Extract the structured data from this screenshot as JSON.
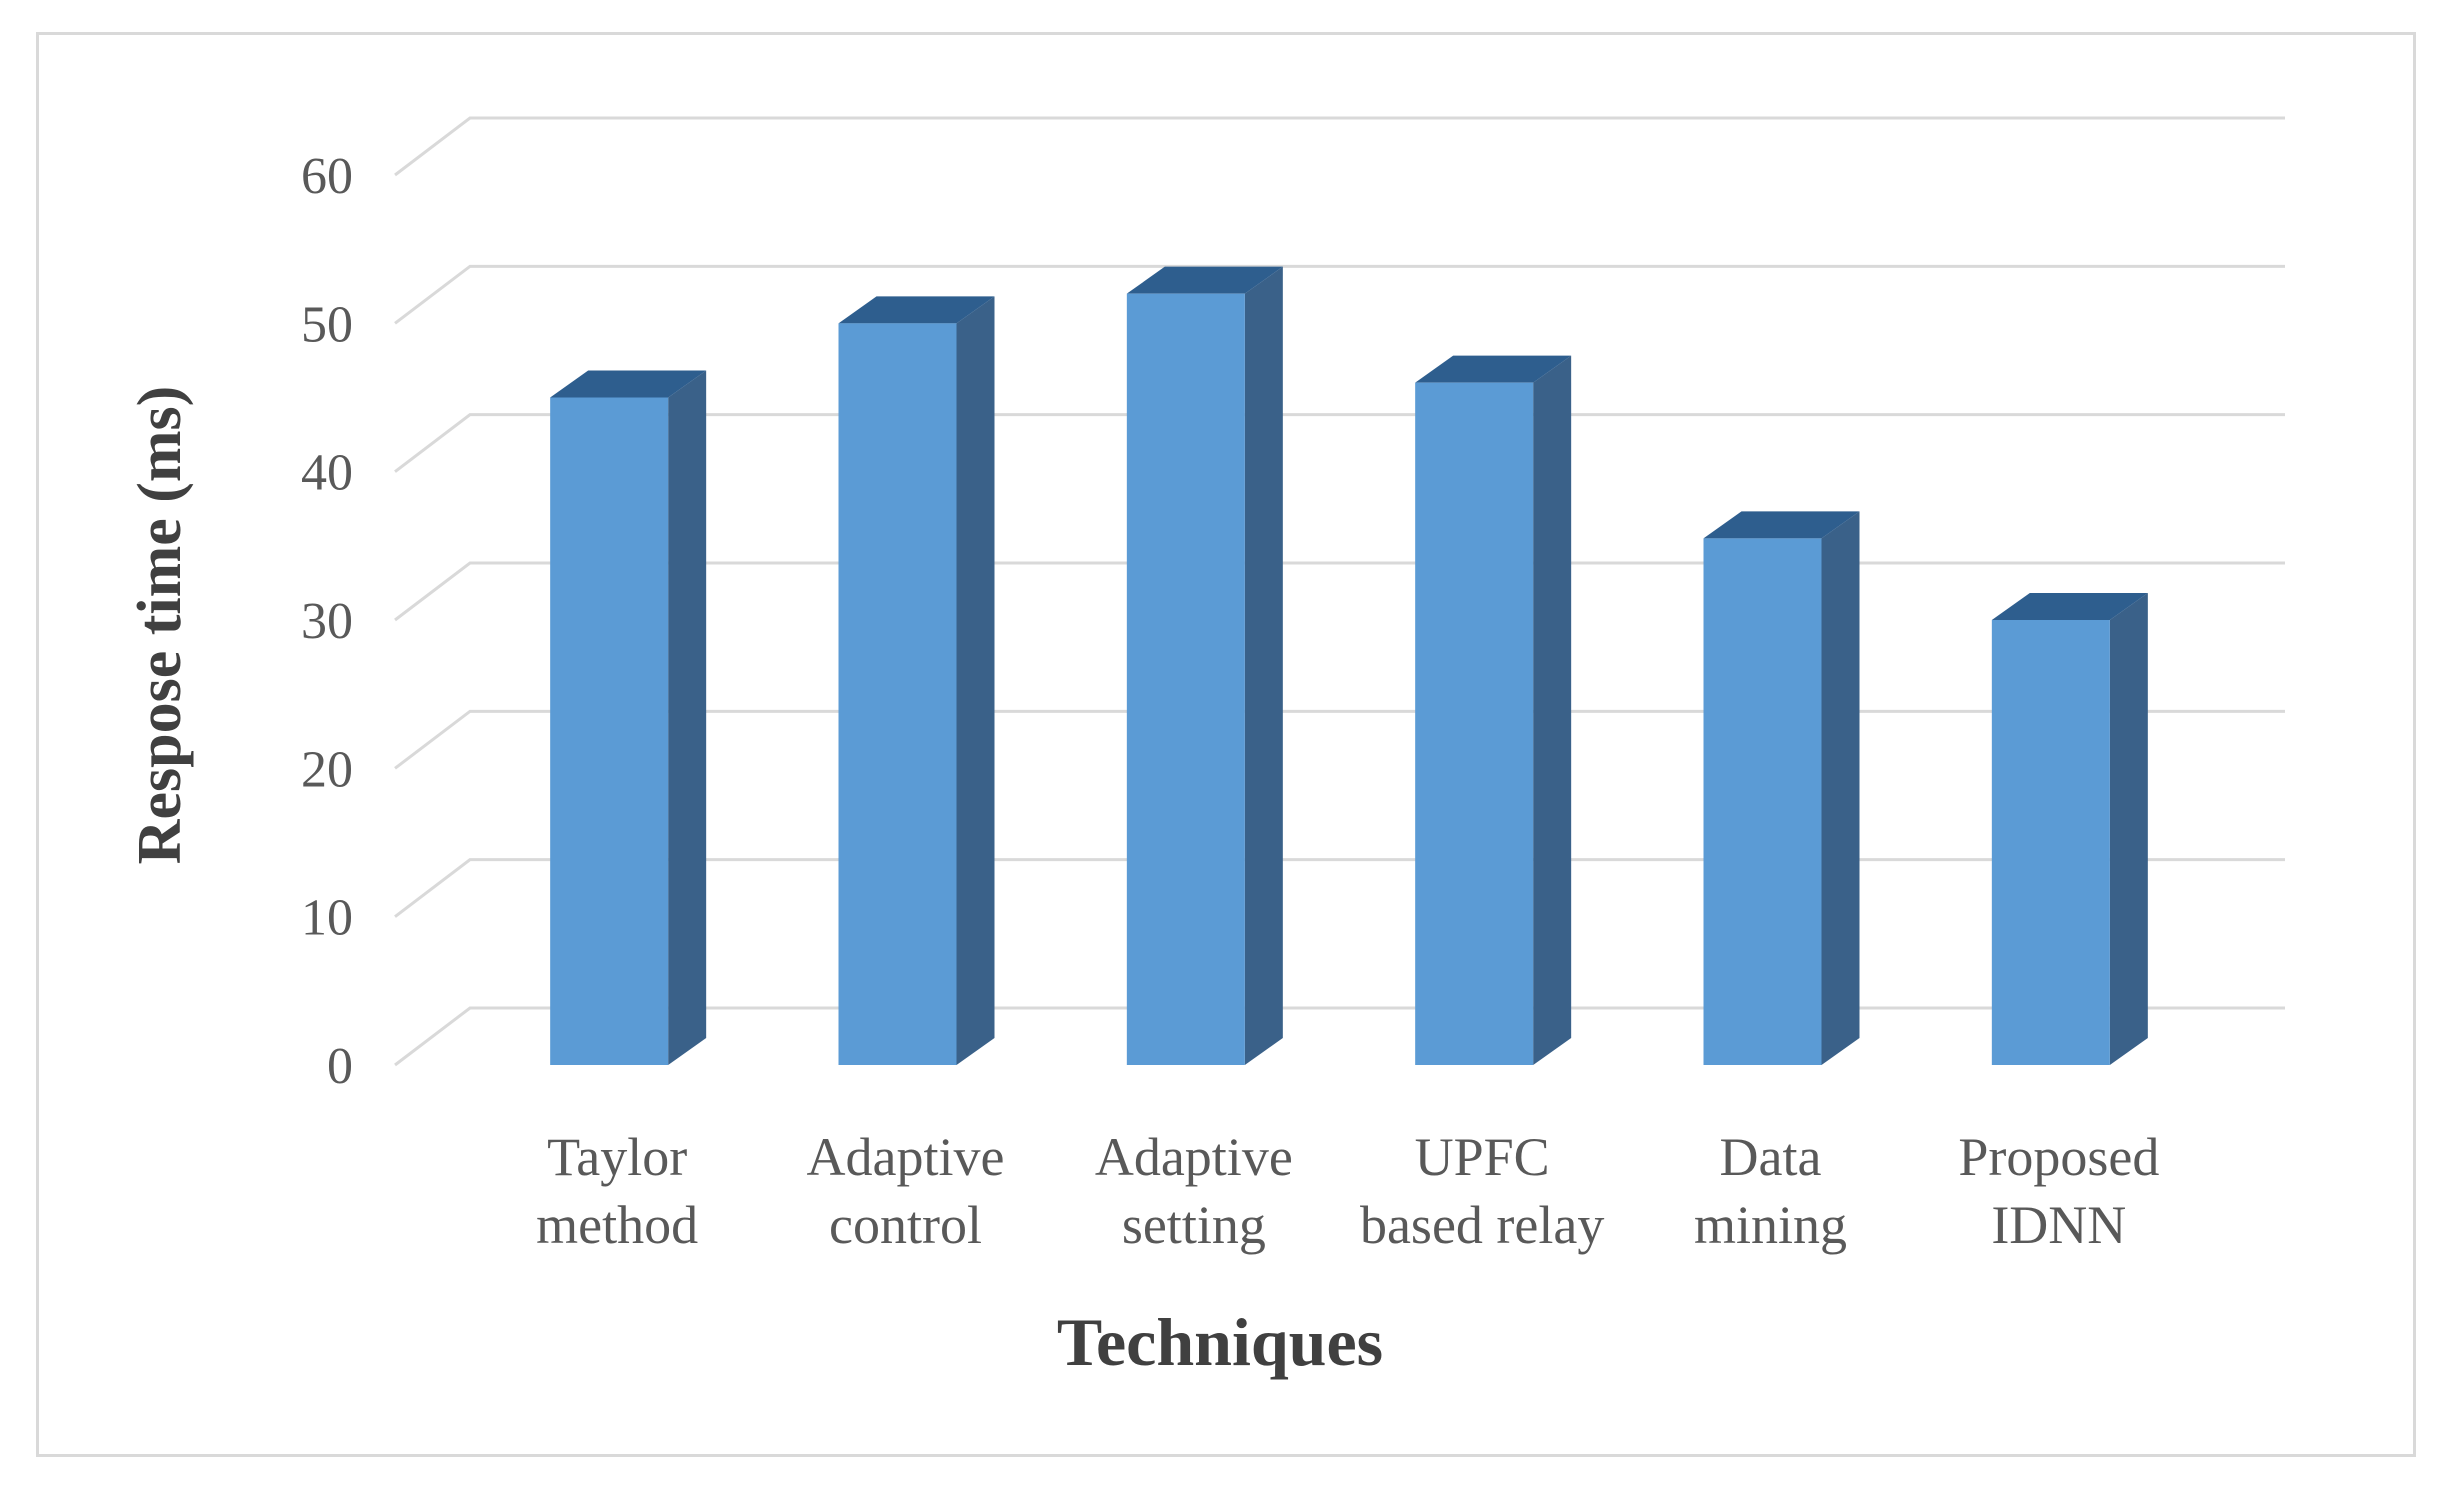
{
  "chart_data": {
    "type": "bar",
    "style": "3d-column",
    "categories": [
      [
        "Taylor",
        "method"
      ],
      [
        "Adaptive",
        "control"
      ],
      [
        "Adaptive",
        "setting"
      ],
      [
        "UPFC",
        "based relay"
      ],
      [
        "Data",
        "mining"
      ],
      [
        "Proposed",
        "IDNN"
      ]
    ],
    "values": [
      45,
      50,
      52,
      46,
      35.5,
      30
    ],
    "xlabel": "Techniques",
    "ylabel": "Respose time (ms)",
    "ylim": [
      0,
      60
    ],
    "yticks": [
      0,
      10,
      20,
      30,
      40,
      50,
      60
    ],
    "grid": true,
    "legend": "none",
    "colors": {
      "bar_front": "#5b9bd5",
      "bar_top": "#2e5e8e",
      "bar_side": "#3a6189",
      "grid": "#d9d9d9",
      "text": "#595959"
    }
  }
}
